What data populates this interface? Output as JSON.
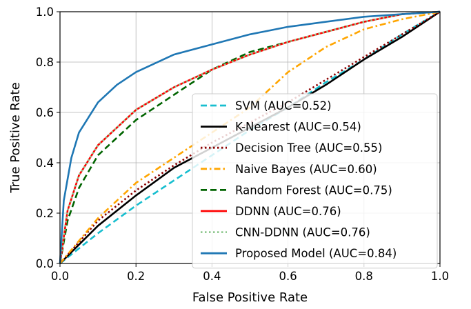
{
  "chart_data": {
    "type": "line",
    "xlabel": "False Positive Rate",
    "ylabel": "True Positive Rate",
    "xlim": [
      0.0,
      1.0
    ],
    "ylim": [
      0.0,
      1.0
    ],
    "xticks": [
      "0.0",
      "0.2",
      "0.4",
      "0.6",
      "0.8",
      "1.0"
    ],
    "yticks": [
      "0.0",
      "0.2",
      "0.4",
      "0.6",
      "0.8",
      "1.0"
    ],
    "grid": true,
    "legend_position": "lower-right",
    "series": [
      {
        "name": "SVM (AUC=0.52)",
        "color": "#17becf",
        "dash": "dashed",
        "x": [
          0,
          0.1,
          0.2,
          0.3,
          0.4,
          0.5,
          0.6,
          0.7,
          0.8,
          0.9,
          1.0
        ],
        "y": [
          0,
          0.12,
          0.23,
          0.33,
          0.43,
          0.53,
          0.62,
          0.72,
          0.81,
          0.91,
          1.0
        ]
      },
      {
        "name": "K-Nearest (AUC=0.54)",
        "color": "#000000",
        "dash": "solid",
        "x": [
          0,
          0.1,
          0.2,
          0.3,
          0.4,
          0.5,
          0.6,
          0.7,
          0.8,
          0.9,
          1.0
        ],
        "y": [
          0,
          0.15,
          0.27,
          0.38,
          0.46,
          0.54,
          0.62,
          0.71,
          0.81,
          0.9,
          1.0
        ]
      },
      {
        "name": "Decision Tree (AUC=0.55)",
        "color": "#8b0000",
        "dash": "dotted",
        "x": [
          0,
          0.1,
          0.2,
          0.3,
          0.4,
          0.5,
          0.6,
          0.7,
          0.8,
          0.9,
          1.0
        ],
        "y": [
          0,
          0.17,
          0.29,
          0.39,
          0.48,
          0.56,
          0.64,
          0.73,
          0.82,
          0.91,
          1.0
        ]
      },
      {
        "name": "Naive Bayes (AUC=0.60)",
        "color": "#ffa500",
        "dash": "dashdot",
        "x": [
          0,
          0.1,
          0.2,
          0.3,
          0.4,
          0.5,
          0.6,
          0.7,
          0.8,
          0.9,
          1.0
        ],
        "y": [
          0,
          0.18,
          0.32,
          0.42,
          0.52,
          0.62,
          0.76,
          0.86,
          0.93,
          0.97,
          1.0
        ]
      },
      {
        "name": "Random Forest (AUC=0.75)",
        "color": "#006400",
        "dash": "dashed",
        "x": [
          0,
          0.02,
          0.05,
          0.1,
          0.2,
          0.3,
          0.4,
          0.5,
          0.6,
          0.7,
          0.8,
          0.9,
          1.0
        ],
        "y": [
          0,
          0.17,
          0.3,
          0.43,
          0.57,
          0.67,
          0.77,
          0.84,
          0.88,
          0.92,
          0.96,
          0.99,
          1.0
        ]
      },
      {
        "name": "DDNN (AUC=0.76)",
        "color": "#ff0000",
        "dash": "solid",
        "x": [
          0,
          0.02,
          0.05,
          0.1,
          0.2,
          0.3,
          0.4,
          0.5,
          0.6,
          0.7,
          0.8,
          0.9,
          1.0
        ],
        "y": [
          0,
          0.21,
          0.35,
          0.47,
          0.61,
          0.7,
          0.77,
          0.83,
          0.88,
          0.92,
          0.96,
          0.99,
          1.0
        ]
      },
      {
        "name": "CNN-DDNN (AUC=0.76)",
        "color": "#90c890",
        "dash": "dotted",
        "x": [
          0,
          0.02,
          0.05,
          0.1,
          0.2,
          0.3,
          0.4,
          0.5,
          0.6,
          0.7,
          0.8,
          0.9,
          1.0
        ],
        "y": [
          0,
          0.21,
          0.35,
          0.47,
          0.61,
          0.7,
          0.77,
          0.83,
          0.88,
          0.92,
          0.96,
          0.99,
          1.0
        ]
      },
      {
        "name": "Proposed Model (AUC=0.84)",
        "color": "#1f77b4",
        "dash": "solid",
        "x": [
          0,
          0.01,
          0.03,
          0.05,
          0.1,
          0.15,
          0.2,
          0.3,
          0.4,
          0.5,
          0.6,
          0.7,
          0.8,
          0.9,
          1.0
        ],
        "y": [
          0,
          0.25,
          0.42,
          0.52,
          0.64,
          0.71,
          0.76,
          0.83,
          0.87,
          0.91,
          0.94,
          0.96,
          0.98,
          0.99,
          1.0
        ]
      }
    ]
  }
}
